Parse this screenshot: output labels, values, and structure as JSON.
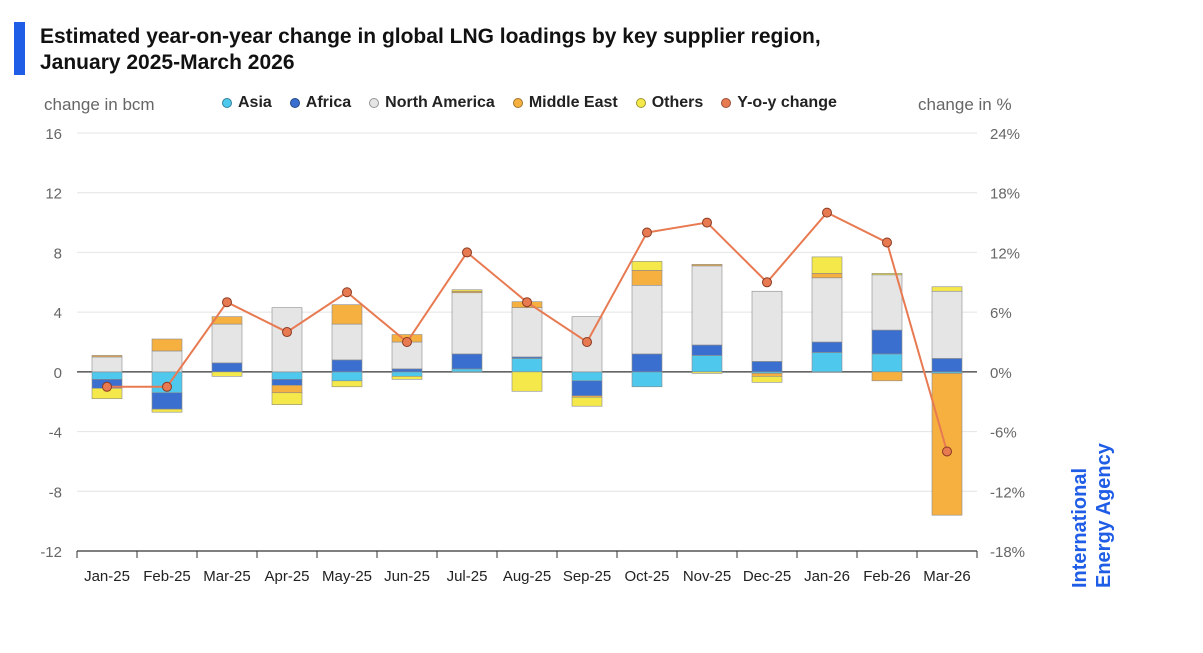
{
  "header": {
    "title_line1": "Estimated year-on-year change in global LNG loadings by key supplier region,",
    "title_line2": "January 2025-March 2026"
  },
  "brand": {
    "name_line1": "International",
    "name_line2": "Energy Agency",
    "color": "#1f5de6"
  },
  "chart_data": {
    "type": "bar",
    "stacked": true,
    "title": "Estimated year-on-year change in global LNG loadings by key supplier region, January 2025-March 2026",
    "ylabel": "change in bcm",
    "y2label": "change in %",
    "ylim": [
      -12,
      16
    ],
    "y2lim": [
      -18,
      24
    ],
    "yticks": [
      16,
      12,
      8,
      4,
      0,
      -4,
      -8,
      -12
    ],
    "y2ticks": [
      "24%",
      "18%",
      "12%",
      "6%",
      "0%",
      "-6%",
      "-12%",
      "-18%"
    ],
    "grid": true,
    "legend_position": "top",
    "categories": [
      "Jan-25",
      "Feb-25",
      "Mar-25",
      "Apr-25",
      "May-25",
      "Jun-25",
      "Jul-25",
      "Aug-25",
      "Sep-25",
      "Oct-25",
      "Nov-25",
      "Dec-25",
      "Jan-26",
      "Feb-26",
      "Mar-26"
    ],
    "series": [
      {
        "name": "Asia",
        "color": "#4fc8ee",
        "values": [
          -0.5,
          -1.4,
          0.0,
          -0.5,
          -0.6,
          -0.3,
          0.2,
          0.9,
          -0.6,
          -1.0,
          1.1,
          -0.1,
          1.3,
          1.2,
          -0.1
        ]
      },
      {
        "name": "Africa",
        "color": "#3a6fd0",
        "values": [
          -0.6,
          -1.1,
          0.6,
          -0.4,
          0.8,
          0.2,
          1.0,
          0.1,
          -1.0,
          1.2,
          0.7,
          0.7,
          0.7,
          1.6,
          0.9
        ]
      },
      {
        "name": "North America",
        "color": "#e5e5e5",
        "values": [
          1.0,
          1.4,
          2.6,
          4.3,
          2.4,
          1.8,
          4.1,
          3.3,
          3.7,
          4.6,
          5.3,
          4.7,
          4.3,
          3.7,
          4.5
        ]
      },
      {
        "name": "Middle East",
        "color": "#f6b040",
        "values": [
          0.1,
          0.8,
          0.5,
          -0.5,
          1.3,
          0.5,
          0.1,
          0.4,
          -0.1,
          1.0,
          0.1,
          -0.2,
          0.3,
          -0.6,
          -9.5
        ]
      },
      {
        "name": "Others",
        "color": "#f4e84a",
        "values": [
          -0.7,
          -0.2,
          -0.3,
          -0.8,
          -0.4,
          -0.2,
          0.1,
          -1.3,
          -0.6,
          0.6,
          -0.1,
          -0.4,
          1.1,
          0.1,
          0.3
        ]
      }
    ],
    "line_series": {
      "name": "Y-o-y change",
      "axis": "right",
      "unit": "%",
      "color": "#e87a52",
      "values": [
        -1.5,
        -1.5,
        7.0,
        4.0,
        8.0,
        3.0,
        12.0,
        7.0,
        3.0,
        14.0,
        15.0,
        9.0,
        16.0,
        13.0,
        -8.0
      ]
    }
  }
}
